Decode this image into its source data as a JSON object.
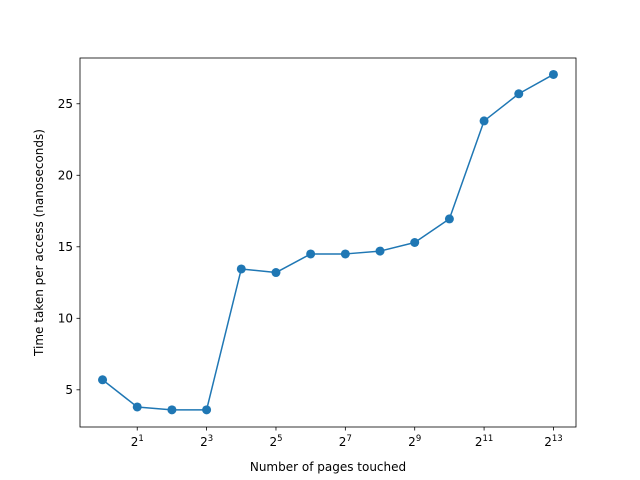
{
  "chart_data": {
    "type": "line",
    "title": "",
    "xlabel": "Number of pages touched",
    "ylabel": "Time taken per access (nanoseconds)",
    "xscale": "log2",
    "x": [
      1,
      2,
      4,
      8,
      16,
      32,
      64,
      128,
      256,
      512,
      1024,
      2048,
      4096,
      8192
    ],
    "series": [
      {
        "values": [
          5.7,
          3.8,
          3.6,
          3.6,
          13.45,
          13.2,
          14.5,
          14.5,
          14.7,
          15.3,
          16.95,
          23.8,
          25.7,
          27.05
        ],
        "color": "#1f77b4",
        "marker": "circle"
      }
    ],
    "xlim": [
      1,
      8192
    ],
    "ylim": [
      2.4,
      28.2
    ],
    "xticks": [
      {
        "value": 2,
        "base": "2",
        "exp": "1"
      },
      {
        "value": 8,
        "base": "2",
        "exp": "3"
      },
      {
        "value": 32,
        "base": "2",
        "exp": "5"
      },
      {
        "value": 128,
        "base": "2",
        "exp": "7"
      },
      {
        "value": 512,
        "base": "2",
        "exp": "9"
      },
      {
        "value": 2048,
        "base": "2",
        "exp": "11"
      },
      {
        "value": 8192,
        "base": "2",
        "exp": "13"
      }
    ],
    "yticks": [
      5,
      10,
      15,
      20,
      25
    ],
    "grid": false,
    "legend": "none"
  }
}
